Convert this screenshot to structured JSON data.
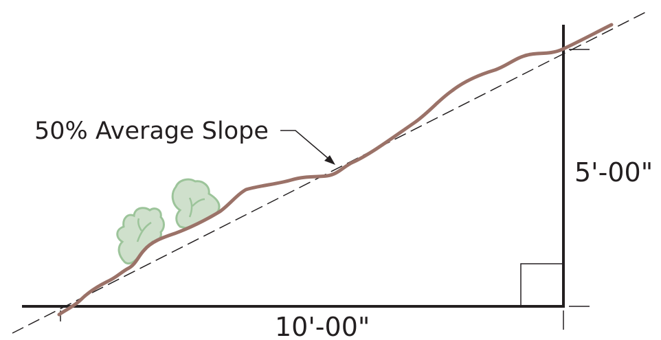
{
  "diagram": {
    "slope_label": "50% Average Slope",
    "rise_label": "5'-00\"",
    "run_label": "10'-00\""
  },
  "colors": {
    "ground_line": "#9b7268",
    "shrub_fill": "#cfe0cc",
    "shrub_stroke": "#9cc49a",
    "line": "#231f20"
  },
  "icons": {
    "shrubs": "shrub-icon",
    "right_angle": "right-angle-marker"
  }
}
